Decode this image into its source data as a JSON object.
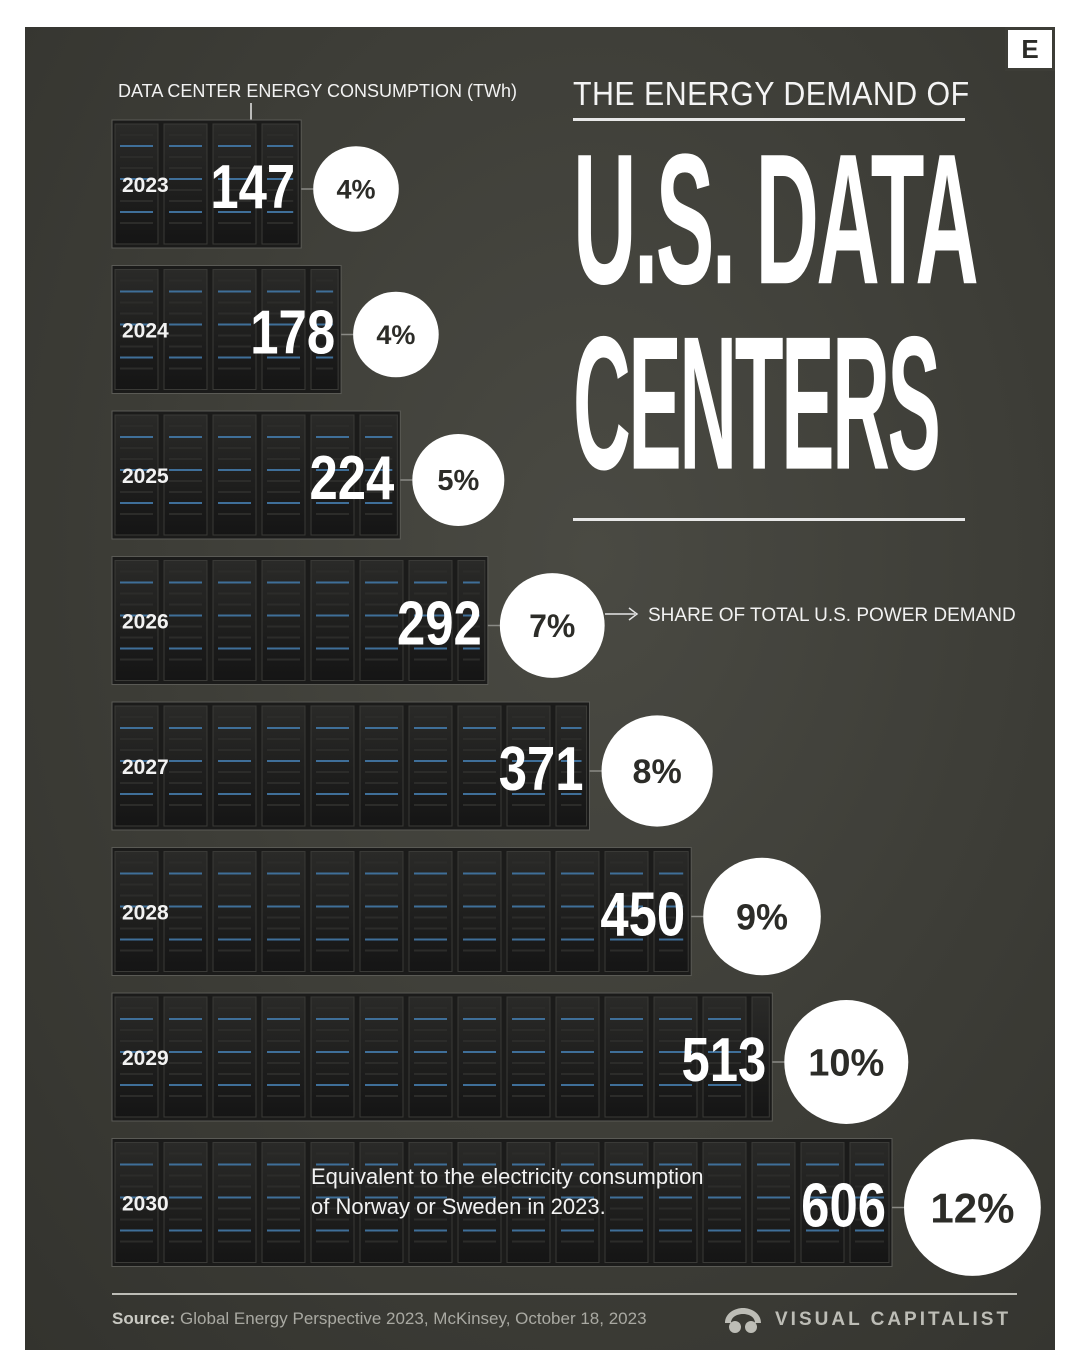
{
  "header": {
    "brand_mark": "E",
    "title_top": "THE ENERGY DEMAND OF",
    "title_line1": "U.S. DATA",
    "title_line2": "CENTERS"
  },
  "annotations": {
    "consumption_label": "DATA CENTER ENERGY CONSUMPTION (TWh)",
    "share_label": "SHARE OF TOTAL U.S. POWER DEMAND",
    "note_line1": "Equivalent to the electricity consumption",
    "note_line2": "of Norway or Sweden in 2023."
  },
  "footer": {
    "source_label": "Source:",
    "source_text": "Global Energy Perspective 2023, McKinsey, October 18, 2023",
    "publisher": "VISUAL CAPITALIST"
  },
  "colors": {
    "background": "#3d3d37",
    "text": "#f2f2f2",
    "circle": "#ffffff",
    "circle_text": "#2c2c28",
    "rack_led": "#4a90d9"
  },
  "chart_data": {
    "type": "bar",
    "orientation": "horizontal",
    "title": "THE ENERGY DEMAND OF U.S. DATA CENTERS",
    "value_label": "DATA CENTER ENERGY CONSUMPTION (TWh)",
    "share_label": "SHARE OF TOTAL U.S. POWER DEMAND",
    "categories": [
      "2023",
      "2024",
      "2025",
      "2026",
      "2027",
      "2028",
      "2029",
      "2030"
    ],
    "values": [
      147,
      178,
      224,
      292,
      371,
      450,
      513,
      606
    ],
    "value_labels": [
      "147",
      "178",
      "224",
      "292",
      "371",
      "450",
      "513",
      "606"
    ],
    "shares": [
      "4%",
      "4%",
      "5%",
      "7%",
      "8%",
      "9%",
      "10%",
      "12%"
    ],
    "share_values": [
      4,
      4,
      5,
      7,
      8,
      9,
      10,
      12
    ],
    "unit": "TWh"
  }
}
